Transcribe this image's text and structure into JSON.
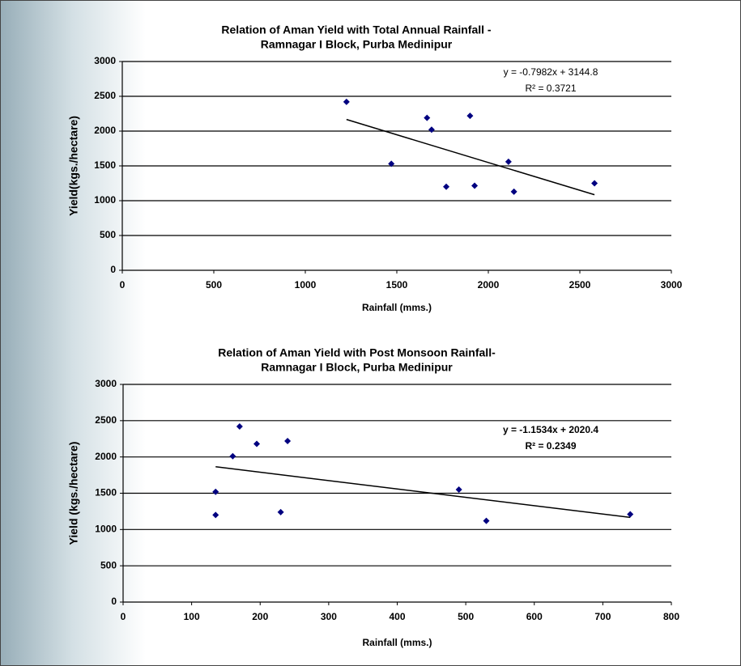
{
  "chart_data": [
    {
      "type": "scatter",
      "title": [
        "Relation of Aman  Yield with Total Annual Rainfall -",
        "Ramnagar I Block, Purba Medinipur"
      ],
      "x_label": "Rainfall (mms.)",
      "y_label": "Yield(kgs./hectare)",
      "x": [
        1225,
        1470,
        1665,
        1690,
        1770,
        1900,
        1925,
        2110,
        2140,
        2580
      ],
      "values": [
        2420,
        1530,
        2190,
        2020,
        1200,
        2220,
        1215,
        1560,
        1130,
        1250
      ],
      "color": "#000080",
      "xlim": [
        0,
        3000
      ],
      "xticks": [
        0,
        500,
        1000,
        1500,
        2000,
        2500,
        3000
      ],
      "ylim": [
        0,
        3000
      ],
      "yticks": [
        0,
        500,
        1000,
        1500,
        2000,
        2500,
        3000
      ],
      "grid": true,
      "trendline": {
        "slope": -0.7982,
        "intercept": 3144.8,
        "equation": "y = -0.7982x + 3144.8",
        "r_squared": "R² = 0.3721",
        "bold": false
      }
    },
    {
      "type": "scatter",
      "title": [
        "Relation of Aman Yield with Post Monsoon Rainfall-",
        "Ramnagar I Block, Purba Medinipur"
      ],
      "x_label": "Rainfall (mms.)",
      "y_label": "Yield (kgs./hectare)",
      "x": [
        135,
        135,
        160,
        170,
        195,
        230,
        240,
        490,
        530,
        740
      ],
      "values": [
        1520,
        1200,
        2010,
        2420,
        2180,
        1240,
        2220,
        1550,
        1120,
        1210
      ],
      "color": "#000080",
      "xlim": [
        0,
        800
      ],
      "xticks": [
        0,
        100,
        200,
        300,
        400,
        500,
        600,
        700,
        800
      ],
      "ylim": [
        0,
        3000
      ],
      "yticks": [
        0,
        500,
        1000,
        1500,
        2000,
        2500,
        3000
      ],
      "grid": true,
      "trendline": {
        "slope": -1.1534,
        "intercept": 2020.4,
        "equation": "y = -1.1534x + 2020.4",
        "r_squared": "R² = 0.2349",
        "bold": true
      }
    }
  ]
}
